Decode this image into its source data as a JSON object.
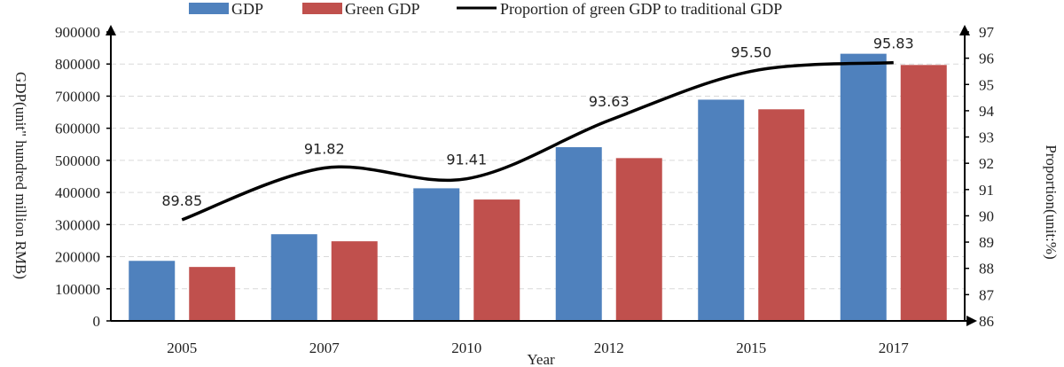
{
  "chart_data": {
    "type": "bar",
    "categories": [
      "2005",
      "2007",
      "2010",
      "2012",
      "2015",
      "2017"
    ],
    "series": [
      {
        "name": "GDP",
        "kind": "bar",
        "axis": "left",
        "color": "#4F81BD",
        "values": [
          187000,
          270000,
          413000,
          541000,
          689000,
          832000
        ]
      },
      {
        "name": "Green GDP",
        "kind": "bar",
        "axis": "left",
        "color": "#C0504D",
        "values": [
          168000,
          248000,
          378000,
          507000,
          659000,
          797000
        ]
      },
      {
        "name": "Proportion of green GDP to traditional GDP",
        "kind": "line",
        "axis": "right",
        "color": "#000000",
        "values": [
          89.85,
          91.82,
          91.41,
          93.63,
          95.5,
          95.83
        ],
        "labels": [
          "89.85",
          "91.82",
          "91.41",
          "93.63",
          "95.50",
          "95.83"
        ]
      }
    ],
    "xlabel": "Year",
    "ylabel": "GDP(unit\" hundred million RMB)",
    "y2label": "Proportion(unit:%)",
    "ylim": [
      0,
      900000
    ],
    "yticks": [
      "0",
      "100000",
      "200000",
      "300000",
      "400000",
      "500000",
      "600000",
      "700000",
      "800000",
      "900000"
    ],
    "y2lim": [
      86,
      97
    ],
    "y2ticks": [
      "86",
      "87",
      "88",
      "89",
      "90",
      "91",
      "92",
      "93",
      "94",
      "95",
      "96",
      "97"
    ],
    "grid": true,
    "legend_position": "top"
  }
}
